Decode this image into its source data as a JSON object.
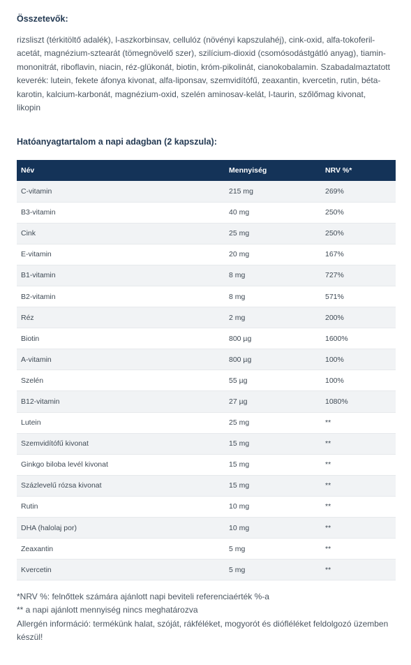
{
  "ingredients": {
    "title": "Összetevők:",
    "text": "rizsliszt (térkitöltő adalék), l-aszkorbinsav, cellulóz (növényi kapszulahéj), cink-oxid, alfa-tokoferil-acetát, magnézium-sztearát (tömegnövelő szer), szilícium-dioxid (csomósodástgátló anyag), tiamin-mononitrát, riboflavin, niacin, réz-glükonát, biotin, króm-pikolinát, cianokobalamin. Szabadalmaztatott keverék: lutein, fekete áfonya kivonat, alfa-liponsav, szemvidítófű, zeaxantin, kvercetin, rutin, béta-karotin, kalcium-karbonát, magnézium-oxid, szelén aminosav-kelát, l-taurin, szőlőmag kivonat, likopin"
  },
  "table": {
    "title": "Hatóanyagtartalom a napi adagban (2 kapszula):",
    "headers": {
      "name": "Név",
      "amount": "Mennyiség",
      "nrv": "NRV %*"
    },
    "rows": [
      {
        "name": "C-vitamin",
        "amount": "215 mg",
        "nrv": "269%"
      },
      {
        "name": "B3-vitamin",
        "amount": "40 mg",
        "nrv": "250%"
      },
      {
        "name": "Cink",
        "amount": "25 mg",
        "nrv": "250%"
      },
      {
        "name": "E-vitamin",
        "amount": "20 mg",
        "nrv": "167%"
      },
      {
        "name": "B1-vitamin",
        "amount": "8 mg",
        "nrv": "727%"
      },
      {
        "name": "B2-vitamin",
        "amount": "8 mg",
        "nrv": "571%"
      },
      {
        "name": "Réz",
        "amount": "2 mg",
        "nrv": "200%"
      },
      {
        "name": "Biotin",
        "amount": "800 µg",
        "nrv": "1600%"
      },
      {
        "name": "A-vitamin",
        "amount": "800 µg",
        "nrv": "100%"
      },
      {
        "name": "Szelén",
        "amount": "55 µg",
        "nrv": "100%"
      },
      {
        "name": "B12-vitamin",
        "amount": "27 µg",
        "nrv": "1080%"
      },
      {
        "name": "Lutein",
        "amount": "25 mg",
        "nrv": "**"
      },
      {
        "name": "Szemvidítófű kivonat",
        "amount": "15 mg",
        "nrv": "**"
      },
      {
        "name": "Ginkgo biloba levél kivonat",
        "amount": "15 mg",
        "nrv": "**"
      },
      {
        "name": "Százlevelű rózsa kivonat",
        "amount": "15 mg",
        "nrv": "**"
      },
      {
        "name": "Rutin",
        "amount": "10 mg",
        "nrv": "**"
      },
      {
        "name": "DHA (halolaj por)",
        "amount": "10 mg",
        "nrv": "**"
      },
      {
        "name": "Zeaxantin",
        "amount": "5 mg",
        "nrv": "**"
      },
      {
        "name": "Kvercetin",
        "amount": "5 mg",
        "nrv": "**"
      }
    ]
  },
  "footnotes": {
    "nrv_note": "*NRV %: felnőttek számára ajánlott napi beviteli referenciaérték %-a",
    "na_note": "** a napi ajánlott mennyiség nincs meghatározva",
    "allergen_note": "Allergén információ: termékünk halat, szóját, rákféléket, mogyorót és diófléléket feldolgozó üzemben készül!"
  }
}
